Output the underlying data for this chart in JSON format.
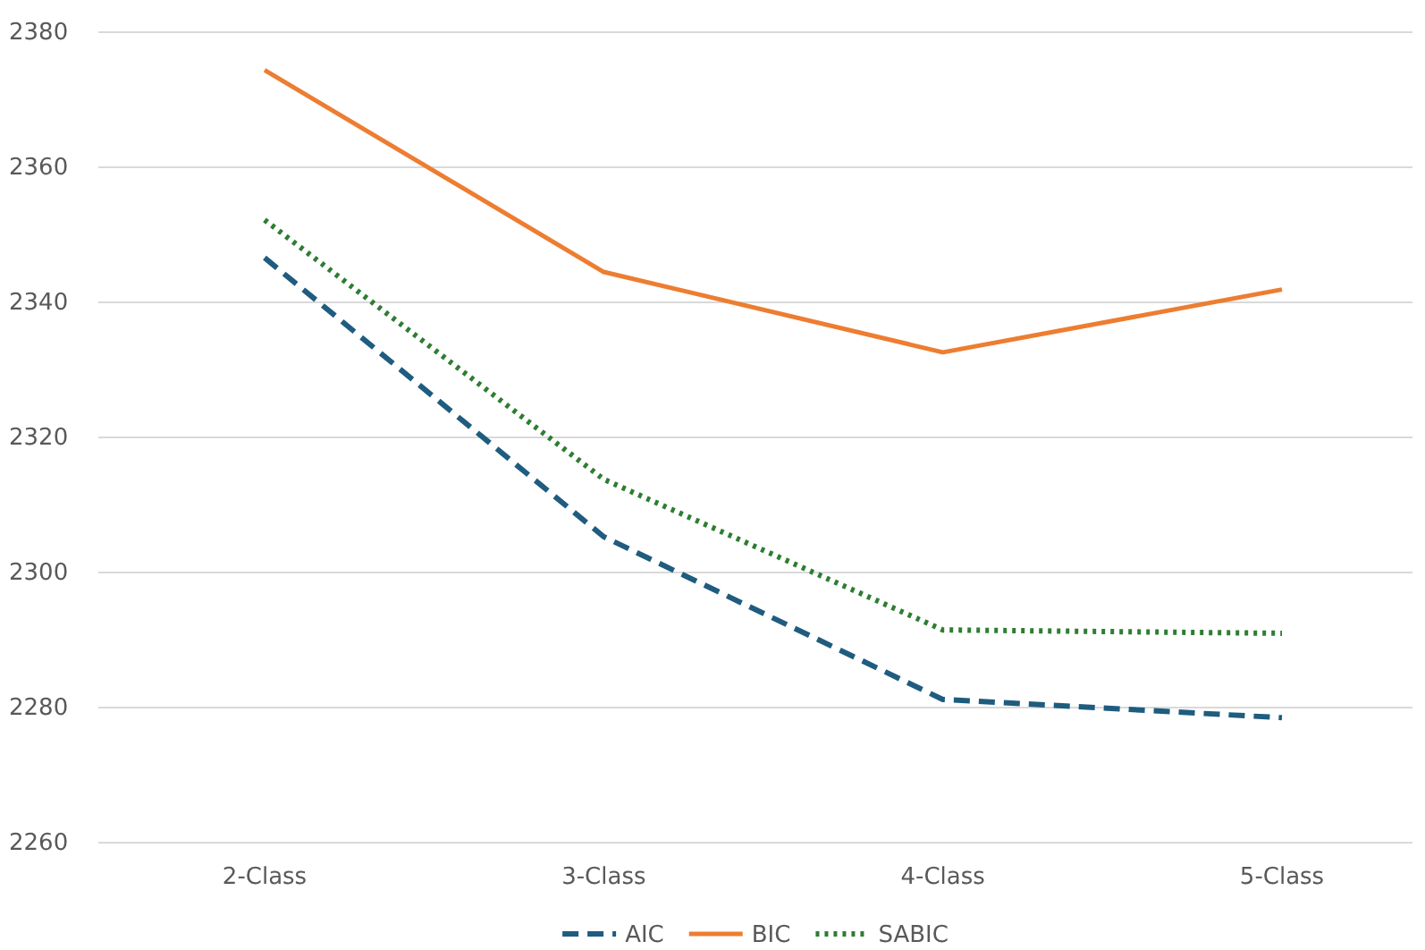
{
  "chart_data": {
    "type": "line",
    "categories": [
      "2-Class",
      "3-Class",
      "4-Class",
      "5-Class"
    ],
    "series": [
      {
        "name": "AIC",
        "color": "#1f5c7f",
        "line_style": "dashed",
        "values": [
          2346.6,
          2305.3,
          2281.2,
          2278.5
        ]
      },
      {
        "name": "BIC",
        "color": "#ed7d31",
        "line_style": "solid",
        "values": [
          2374.4,
          2344.5,
          2332.6,
          2341.9
        ]
      },
      {
        "name": "SABIC",
        "color": "#2e7d32",
        "line_style": "dotted",
        "values": [
          2352.2,
          2313.8,
          2291.5,
          2291.0
        ]
      }
    ],
    "ylim": [
      2260,
      2380
    ],
    "yticks": [
      2260,
      2280,
      2300,
      2320,
      2340,
      2360,
      2380
    ],
    "grid": "y",
    "legend": "bottom",
    "marker": "none"
  }
}
